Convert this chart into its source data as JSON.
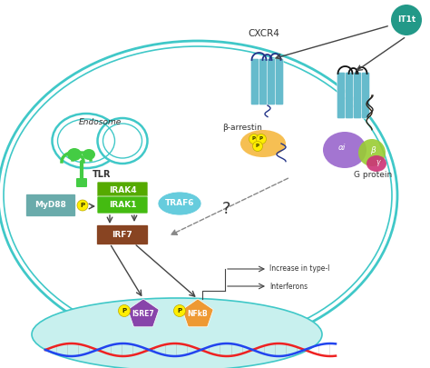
{
  "bg_color": "#ffffff",
  "cell_color": "#40c8c8",
  "nucleus_color": "#c8f0ee",
  "endosome_color": "#40c8c8",
  "tlr_color": "#44cc44",
  "myd88_color": "#6aabab",
  "irak4_color": "#55aa00",
  "irak1_color": "#44bb11",
  "traf6_color": "#66ccdd",
  "irf7_color": "#884422",
  "isre7_color": "#8844aa",
  "nfkb_color": "#ee9933",
  "p_color": "#ffee00",
  "cxcr4_color": "#66bbcc",
  "beta_arrestin_color": "#f5b840",
  "g_alpha_color": "#9966cc",
  "g_beta_color": "#99cc33",
  "g_gamma_color": "#cc3377",
  "it1t_color": "#229988",
  "dna_red": "#ee2222",
  "dna_blue": "#2244ee",
  "arrow_color": "#444444",
  "text_color": "#333333",
  "label_cxcr4": "CXCR4",
  "label_tlr": "TLR",
  "label_endosome": "Endosome",
  "label_myd88": "MyD88",
  "label_irak4": "IRAK4",
  "label_irak1": "IRAK1",
  "label_traf6": "TRAF6",
  "label_irf7": "IRF7",
  "label_isre7": "ISRE7",
  "label_nfkb": "NFkB",
  "label_it1t": "IT1t",
  "label_beta_arrestin": "β-arrestin",
  "label_g_protein": "G protein",
  "label_increase": "Increase in type-I",
  "label_interferons": "Interferons",
  "label_question": "?"
}
